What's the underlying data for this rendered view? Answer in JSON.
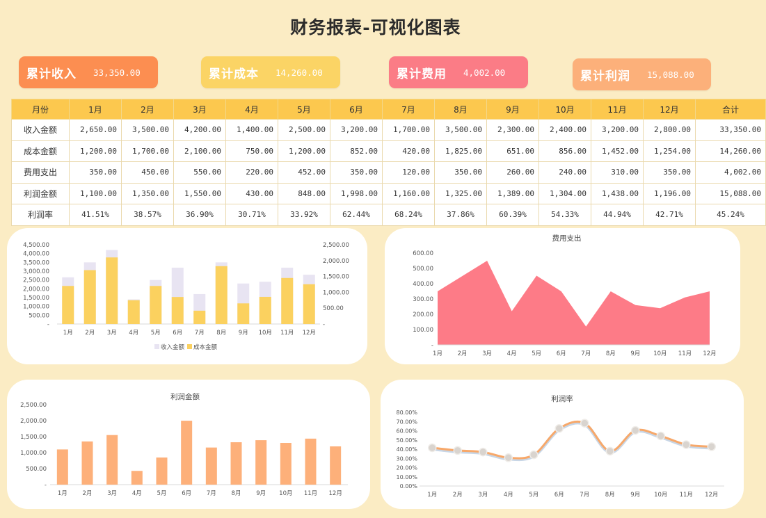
{
  "page_title": "财务报表-可视化图表",
  "kpis": [
    {
      "label": "累计收入",
      "value": "33,350.00",
      "color": "#fc8e51"
    },
    {
      "label": "累计成本",
      "value": "14,260.00",
      "color": "#fbd465"
    },
    {
      "label": "累计费用",
      "value": "4,002.00",
      "color": "#fb7c86"
    },
    {
      "label": "累计利润",
      "value": "15,088.00",
      "color": "#fcb07a"
    }
  ],
  "table": {
    "headers": [
      "月份",
      "1月",
      "2月",
      "3月",
      "4月",
      "5月",
      "6月",
      "7月",
      "8月",
      "9月",
      "10月",
      "11月",
      "12月",
      "合计"
    ],
    "rows": [
      {
        "label": "收入金额",
        "cells": [
          "2,650.00",
          "3,500.00",
          "4,200.00",
          "1,400.00",
          "2,500.00",
          "3,200.00",
          "1,700.00",
          "3,500.00",
          "2,300.00",
          "2,400.00",
          "3,200.00",
          "2,800.00",
          "33,350.00"
        ]
      },
      {
        "label": "成本金额",
        "cells": [
          "1,200.00",
          "1,700.00",
          "2,100.00",
          "750.00",
          "1,200.00",
          "852.00",
          "420.00",
          "1,825.00",
          "651.00",
          "856.00",
          "1,452.00",
          "1,254.00",
          "14,260.00"
        ]
      },
      {
        "label": "费用支出",
        "cells": [
          "350.00",
          "450.00",
          "550.00",
          "220.00",
          "452.00",
          "350.00",
          "120.00",
          "350.00",
          "260.00",
          "240.00",
          "310.00",
          "350.00",
          "4,002.00"
        ]
      },
      {
        "label": "利润金额",
        "cells": [
          "1,100.00",
          "1,350.00",
          "1,550.00",
          "430.00",
          "848.00",
          "1,998.00",
          "1,160.00",
          "1,325.00",
          "1,389.00",
          "1,304.00",
          "1,438.00",
          "1,196.00",
          "15,088.00"
        ]
      },
      {
        "label": "利润率",
        "cells": [
          "41.51%",
          "38.57%",
          "36.90%",
          "30.71%",
          "33.92%",
          "62.44%",
          "68.24%",
          "37.86%",
          "60.39%",
          "54.33%",
          "44.94%",
          "42.71%",
          "45.24%"
        ]
      }
    ]
  },
  "chart_data": [
    {
      "type": "bar",
      "title": "",
      "categories": [
        "1月",
        "2月",
        "3月",
        "4月",
        "5月",
        "6月",
        "7月",
        "8月",
        "9月",
        "10月",
        "11月",
        "12月"
      ],
      "series": [
        {
          "name": "收入金额",
          "axis": "left",
          "color": "#e8e4f2",
          "values": [
            2650,
            3500,
            4200,
            1400,
            2500,
            3200,
            1700,
            3500,
            2300,
            2400,
            3200,
            2800
          ]
        },
        {
          "name": "成本金额",
          "axis": "right",
          "color": "#fbd15f",
          "values": [
            1200,
            1700,
            2100,
            750,
            1200,
            852,
            420,
            1825,
            651,
            856,
            1452,
            1254
          ]
        }
      ],
      "left_ticks": [
        "-",
        "500.00",
        "1,000.00",
        "1,500.00",
        "2,000.00",
        "2,500.00",
        "3,000.00",
        "3,500.00",
        "4,000.00",
        "4,500.00"
      ],
      "right_ticks": [
        "-",
        "500.00",
        "1,000.00",
        "1,500.00",
        "2,000.00",
        "2,500.00"
      ],
      "ylim_left": [
        0,
        4500
      ],
      "ylim_right": [
        0,
        2500
      ],
      "legend": "bottom"
    },
    {
      "type": "area",
      "title": "费用支出",
      "categories": [
        "1月",
        "2月",
        "3月",
        "4月",
        "5月",
        "6月",
        "7月",
        "8月",
        "9月",
        "10月",
        "11月",
        "12月"
      ],
      "values": [
        350,
        450,
        550,
        220,
        452,
        350,
        120,
        350,
        260,
        240,
        310,
        350
      ],
      "color": "#fd7b87",
      "y_ticks": [
        "-",
        "100.00",
        "200.00",
        "300.00",
        "400.00",
        "500.00",
        "600.00"
      ],
      "ylim": [
        0,
        600
      ]
    },
    {
      "type": "bar",
      "title": "利润金额",
      "categories": [
        "1月",
        "2月",
        "3月",
        "4月",
        "5月",
        "6月",
        "7月",
        "8月",
        "9月",
        "10月",
        "11月",
        "12月"
      ],
      "values": [
        1100,
        1350,
        1550,
        430,
        848,
        1998,
        1160,
        1325,
        1389,
        1304,
        1438,
        1196
      ],
      "color": "#fdb07a",
      "y_ticks": [
        "-",
        "500.00",
        "1,000.00",
        "1,500.00",
        "2,000.00",
        "2,500.00"
      ],
      "ylim": [
        0,
        2500
      ]
    },
    {
      "type": "line",
      "title": "利润率",
      "categories": [
        "1月",
        "2月",
        "3月",
        "4月",
        "5月",
        "6月",
        "7月",
        "8月",
        "9月",
        "10月",
        "11月",
        "12月"
      ],
      "values": [
        41.51,
        38.57,
        36.9,
        30.71,
        33.92,
        62.44,
        68.24,
        37.86,
        60.39,
        54.33,
        44.94,
        42.71
      ],
      "color": "#f7a86a",
      "y_ticks": [
        "0.00%",
        "10.00%",
        "20.00%",
        "30.00%",
        "40.00%",
        "50.00%",
        "60.00%",
        "70.00%",
        "80.00%"
      ],
      "ylim": [
        0,
        80
      ]
    }
  ]
}
